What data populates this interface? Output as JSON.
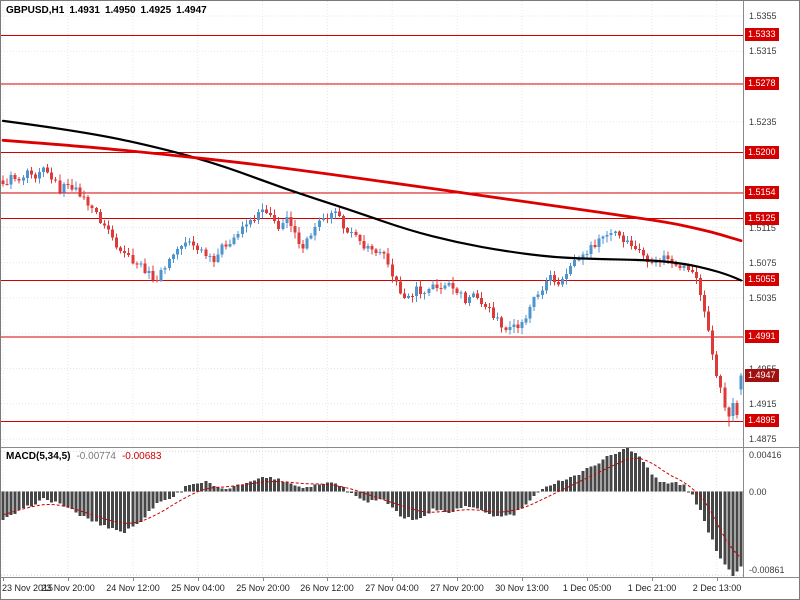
{
  "header": {
    "symbol": "GBPUSD,H1",
    "open": "1.4931",
    "high": "1.4950",
    "low": "1.4925",
    "close": "1.4947"
  },
  "macd_header": {
    "label": "MACD(5,34,5)",
    "value": "-0.00774",
    "signal": "-0.00683"
  },
  "chart_data": {
    "type": "candlestick",
    "symbol": "GBPUSD",
    "timeframe": "H1",
    "bars": 183,
    "current_bar": {
      "open": 1.4931,
      "high": 1.495,
      "low": 1.4925,
      "close": 1.4947
    },
    "session_low": 1.4889,
    "price_axis": {
      "min": 1.4866,
      "max": 1.5372,
      "grid_start": 1.4875,
      "grid_step": 0.004,
      "grid_count": 13,
      "plain_labels": [
        1.4875,
        1.4915,
        1.4955,
        1.5035,
        1.5075,
        1.5115,
        1.5235,
        1.5315,
        1.5355
      ]
    },
    "levels": [
      1.5333,
      1.5278,
      1.52,
      1.5154,
      1.5125,
      1.5055,
      1.4991,
      1.4895
    ],
    "current_price": 1.4947,
    "time_axis": [
      {
        "h": 0,
        "t": "23 Nov 2015"
      },
      {
        "h": 16,
        "t": "23 Nov 20:00"
      },
      {
        "h": 32,
        "t": "24 Nov 12:00"
      },
      {
        "h": 48,
        "t": "25 Nov 04:00"
      },
      {
        "h": 64,
        "t": "25 Nov 20:00"
      },
      {
        "h": 80,
        "t": "26 Nov 12:00"
      },
      {
        "h": 96,
        "t": "27 Nov 04:00"
      },
      {
        "h": 112,
        "t": "27 Nov 20:00"
      },
      {
        "h": 128,
        "t": "30 Nov 13:00"
      },
      {
        "h": 144,
        "t": "1 Dec 05:00"
      },
      {
        "h": 160,
        "t": "1 Dec 21:00"
      },
      {
        "h": 176,
        "t": "2 Dec 13:00"
      }
    ],
    "price_path": [
      [
        0,
        1.5162
      ],
      [
        2,
        1.5172
      ],
      [
        4,
        1.5166
      ],
      [
        6,
        1.5176
      ],
      [
        8,
        1.5168
      ],
      [
        10,
        1.5181
      ],
      [
        12,
        1.5172
      ],
      [
        14,
        1.5158
      ],
      [
        16,
        1.5166
      ],
      [
        18,
        1.5157
      ],
      [
        20,
        1.5148
      ],
      [
        22,
        1.5138
      ],
      [
        24,
        1.5122
      ],
      [
        26,
        1.5112
      ],
      [
        28,
        1.5096
      ],
      [
        30,
        1.5088
      ],
      [
        32,
        1.5078
      ],
      [
        34,
        1.5072
      ],
      [
        36,
        1.5062
      ],
      [
        38,
        1.5056
      ],
      [
        40,
        1.5072
      ],
      [
        42,
        1.5086
      ],
      [
        44,
        1.5094
      ],
      [
        46,
        1.5098
      ],
      [
        48,
        1.5092
      ],
      [
        50,
        1.5086
      ],
      [
        52,
        1.508
      ],
      [
        54,
        1.5092
      ],
      [
        56,
        1.51
      ],
      [
        58,
        1.5108
      ],
      [
        60,
        1.5118
      ],
      [
        62,
        1.5126
      ],
      [
        64,
        1.5134
      ],
      [
        66,
        1.5126
      ],
      [
        68,
        1.5116
      ],
      [
        70,
        1.5124
      ],
      [
        72,
        1.5106
      ],
      [
        74,
        1.5094
      ],
      [
        76,
        1.5108
      ],
      [
        78,
        1.512
      ],
      [
        80,
        1.5126
      ],
      [
        82,
        1.513
      ],
      [
        84,
        1.5118
      ],
      [
        86,
        1.5108
      ],
      [
        88,
        1.5098
      ],
      [
        90,
        1.5092
      ],
      [
        92,
        1.5088
      ],
      [
        94,
        1.5082
      ],
      [
        96,
        1.5062
      ],
      [
        98,
        1.504
      ],
      [
        100,
        1.5034
      ],
      [
        102,
        1.5046
      ],
      [
        104,
        1.504
      ],
      [
        106,
        1.5052
      ],
      [
        108,
        1.5044
      ],
      [
        110,
        1.5054
      ],
      [
        112,
        1.5044
      ],
      [
        114,
        1.5032
      ],
      [
        116,
        1.504
      ],
      [
        118,
        1.503
      ],
      [
        120,
        1.5022
      ],
      [
        122,
        1.501
      ],
      [
        124,
        1.5
      ],
      [
        126,
        1.5006
      ],
      [
        127,
        1.4998
      ],
      [
        129,
        1.5012
      ],
      [
        131,
        1.5032
      ],
      [
        133,
        1.5046
      ],
      [
        135,
        1.5058
      ],
      [
        137,
        1.5052
      ],
      [
        139,
        1.5066
      ],
      [
        141,
        1.5076
      ],
      [
        143,
        1.5084
      ],
      [
        145,
        1.5092
      ],
      [
        147,
        1.5102
      ],
      [
        149,
        1.5108
      ],
      [
        151,
        1.5112
      ],
      [
        153,
        1.5102
      ],
      [
        155,
        1.5096
      ],
      [
        157,
        1.5088
      ],
      [
        159,
        1.508
      ],
      [
        161,
        1.5076
      ],
      [
        163,
        1.5082
      ],
      [
        165,
        1.5078
      ],
      [
        167,
        1.5072
      ],
      [
        169,
        1.5068
      ],
      [
        171,
        1.5058
      ],
      [
        172,
        1.504
      ],
      [
        173,
        1.502
      ],
      [
        174,
        1.4996
      ],
      [
        175,
        1.4972
      ],
      [
        176,
        1.495
      ],
      [
        177,
        1.493
      ],
      [
        178,
        1.4912
      ],
      [
        179,
        1.4898
      ],
      [
        180,
        1.4916
      ],
      [
        181,
        1.4906
      ],
      [
        182,
        1.4947
      ]
    ],
    "ma_fast": {
      "name": "MA fast (black)",
      "color": "#000000",
      "width": 2.2,
      "path": [
        [
          0,
          1.5236
        ],
        [
          20,
          1.5224
        ],
        [
          40,
          1.5204
        ],
        [
          55,
          1.5184
        ],
        [
          70,
          1.5158
        ],
        [
          85,
          1.5136
        ],
        [
          100,
          1.5112
        ],
        [
          112,
          1.5098
        ],
        [
          124,
          1.5088
        ],
        [
          136,
          1.5081
        ],
        [
          148,
          1.5079
        ],
        [
          160,
          1.5078
        ],
        [
          168,
          1.5074
        ],
        [
          174,
          1.5068
        ],
        [
          179,
          1.5061
        ],
        [
          182,
          1.5055
        ]
      ]
    },
    "ma_slow": {
      "name": "MA slow (red)",
      "color": "#dd0000",
      "width": 2.8,
      "path": [
        [
          0,
          1.5214
        ],
        [
          20,
          1.5207
        ],
        [
          40,
          1.5198
        ],
        [
          60,
          1.5188
        ],
        [
          80,
          1.5176
        ],
        [
          100,
          1.5163
        ],
        [
          120,
          1.515
        ],
        [
          140,
          1.5137
        ],
        [
          155,
          1.5127
        ],
        [
          165,
          1.512
        ],
        [
          172,
          1.5113
        ],
        [
          177,
          1.5107
        ],
        [
          182,
          1.51
        ]
      ]
    },
    "macd": {
      "label": "MACD(5,34,5)",
      "value": -0.00774,
      "signal_value": -0.00683,
      "min": -0.0088,
      "max": 0.0045,
      "axis_labels": [
        {
          "v": 0.00416,
          "t": "0.00416"
        },
        {
          "v": 0,
          "t": "0.00"
        },
        {
          "v": -0.00861,
          "t": "-0.00861"
        }
      ],
      "path": [
        [
          0,
          -0.003
        ],
        [
          5,
          -0.0018
        ],
        [
          10,
          -0.0008
        ],
        [
          14,
          -0.0012
        ],
        [
          18,
          -0.0022
        ],
        [
          24,
          -0.0034
        ],
        [
          30,
          -0.0042
        ],
        [
          34,
          -0.003
        ],
        [
          38,
          -0.0012
        ],
        [
          42,
          -0.0005
        ],
        [
          46,
          0.0008
        ],
        [
          50,
          0.001
        ],
        [
          54,
          0.0002
        ],
        [
          58,
          0.0006
        ],
        [
          62,
          0.0013
        ],
        [
          66,
          0.0015
        ],
        [
          70,
          0.001
        ],
        [
          74,
          0.0004
        ],
        [
          78,
          0.0008
        ],
        [
          82,
          0.001
        ],
        [
          86,
          -0.0002
        ],
        [
          90,
          -0.001
        ],
        [
          94,
          -0.0008
        ],
        [
          98,
          -0.0025
        ],
        [
          102,
          -0.003
        ],
        [
          106,
          -0.0018
        ],
        [
          110,
          -0.0022
        ],
        [
          114,
          -0.0015
        ],
        [
          118,
          -0.002
        ],
        [
          122,
          -0.0026
        ],
        [
          126,
          -0.0024
        ],
        [
          130,
          -0.001
        ],
        [
          134,
          0.0006
        ],
        [
          138,
          0.0012
        ],
        [
          142,
          0.0018
        ],
        [
          146,
          0.0028
        ],
        [
          150,
          0.0038
        ],
        [
          152,
          0.0042
        ],
        [
          154,
          0.0044
        ],
        [
          156,
          0.004
        ],
        [
          158,
          0.0032
        ],
        [
          160,
          0.0018
        ],
        [
          162,
          0.001
        ],
        [
          164,
          0.0008
        ],
        [
          166,
          0.001
        ],
        [
          168,
          0.0006
        ],
        [
          170,
          -0.0004
        ],
        [
          172,
          -0.002
        ],
        [
          174,
          -0.0042
        ],
        [
          176,
          -0.006
        ],
        [
          178,
          -0.0075
        ],
        [
          180,
          -0.0086
        ],
        [
          181,
          -0.0082
        ],
        [
          182,
          -0.00774
        ]
      ],
      "signal_path": [
        [
          0,
          -0.0024
        ],
        [
          6,
          -0.0016
        ],
        [
          12,
          -0.0012
        ],
        [
          18,
          -0.0018
        ],
        [
          26,
          -0.003
        ],
        [
          32,
          -0.0034
        ],
        [
          38,
          -0.0024
        ],
        [
          44,
          -0.0008
        ],
        [
          50,
          0.0004
        ],
        [
          56,
          0.0005
        ],
        [
          62,
          0.0009
        ],
        [
          68,
          0.0011
        ],
        [
          74,
          0.0008
        ],
        [
          80,
          0.0008
        ],
        [
          86,
          0.0003
        ],
        [
          92,
          -0.0006
        ],
        [
          98,
          -0.0014
        ],
        [
          104,
          -0.0022
        ],
        [
          110,
          -0.002
        ],
        [
          116,
          -0.0018
        ],
        [
          122,
          -0.0022
        ],
        [
          128,
          -0.0018
        ],
        [
          134,
          -0.0006
        ],
        [
          140,
          0.0006
        ],
        [
          146,
          0.0018
        ],
        [
          152,
          0.003
        ],
        [
          156,
          0.0036
        ],
        [
          160,
          0.003
        ],
        [
          164,
          0.0018
        ],
        [
          168,
          0.001
        ],
        [
          172,
          -0.0004
        ],
        [
          174,
          -0.0016
        ],
        [
          176,
          -0.0032
        ],
        [
          178,
          -0.0048
        ],
        [
          180,
          -0.006
        ],
        [
          182,
          -0.00683
        ]
      ]
    },
    "colors": {
      "up": "#4f94cd",
      "down": "#dd3a3a",
      "histogram": "#474747",
      "signal_line": "#cc0000",
      "level_line": "#d40000",
      "level_tag": "#d40000",
      "current_tag": "#a01010",
      "grid": "#e7e7e7",
      "axis_text": "#3a3a3a"
    }
  }
}
